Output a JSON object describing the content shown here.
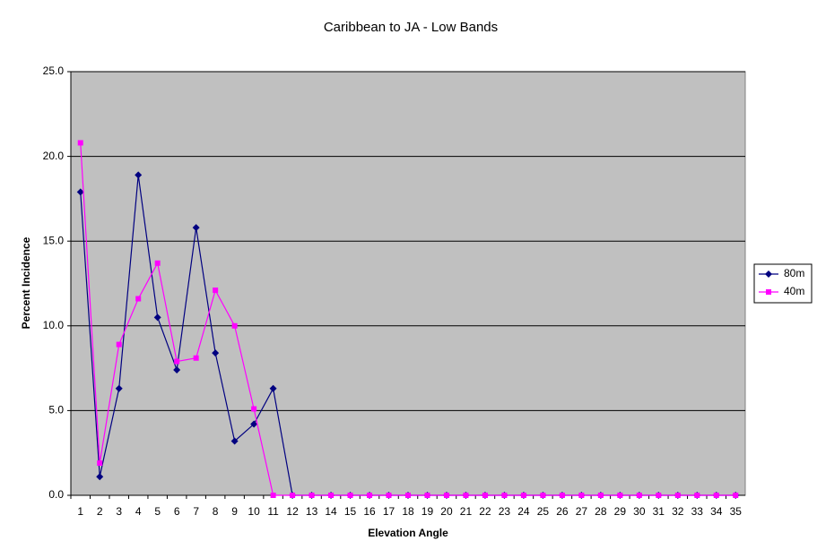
{
  "chart_data": {
    "type": "line",
    "title": "Caribbean to JA - Low Bands",
    "x_label": "Elevation Angle",
    "y_label": "Percent Incidence",
    "categories": [
      1,
      2,
      3,
      4,
      5,
      6,
      7,
      8,
      9,
      10,
      11,
      12,
      13,
      14,
      15,
      16,
      17,
      18,
      19,
      20,
      21,
      22,
      23,
      24,
      25,
      26,
      27,
      28,
      29,
      30,
      31,
      32,
      33,
      34,
      35
    ],
    "series": [
      {
        "name": "80m",
        "color": "#000080",
        "marker": "diamond",
        "values": [
          17.9,
          1.1,
          6.3,
          18.9,
          10.5,
          7.4,
          15.8,
          8.4,
          3.2,
          4.2,
          6.3,
          0,
          0,
          0,
          0,
          0,
          0,
          0,
          0,
          0,
          0,
          0,
          0,
          0,
          0,
          0,
          0,
          0,
          0,
          0,
          0,
          0,
          0,
          0,
          0
        ]
      },
      {
        "name": "40m",
        "color": "#ff00ff",
        "marker": "square",
        "values": [
          20.8,
          1.9,
          8.9,
          11.6,
          13.7,
          7.9,
          8.1,
          12.1,
          10.0,
          5.1,
          0,
          0,
          0,
          0,
          0,
          0,
          0,
          0,
          0,
          0,
          0,
          0,
          0,
          0,
          0,
          0,
          0,
          0,
          0,
          0,
          0,
          0,
          0,
          0,
          0
        ]
      }
    ],
    "ylim": [
      0,
      25
    ],
    "yticks": [
      {
        "value": 0,
        "label": "0.0"
      },
      {
        "value": 5,
        "label": "5.0"
      },
      {
        "value": 10,
        "label": "10.0"
      },
      {
        "value": 15,
        "label": "15.0"
      },
      {
        "value": 20,
        "label": "20.0"
      },
      {
        "value": 25,
        "label": "25.0"
      }
    ],
    "grid": true,
    "plot_background": "#c0c0c0",
    "legend": "right"
  }
}
